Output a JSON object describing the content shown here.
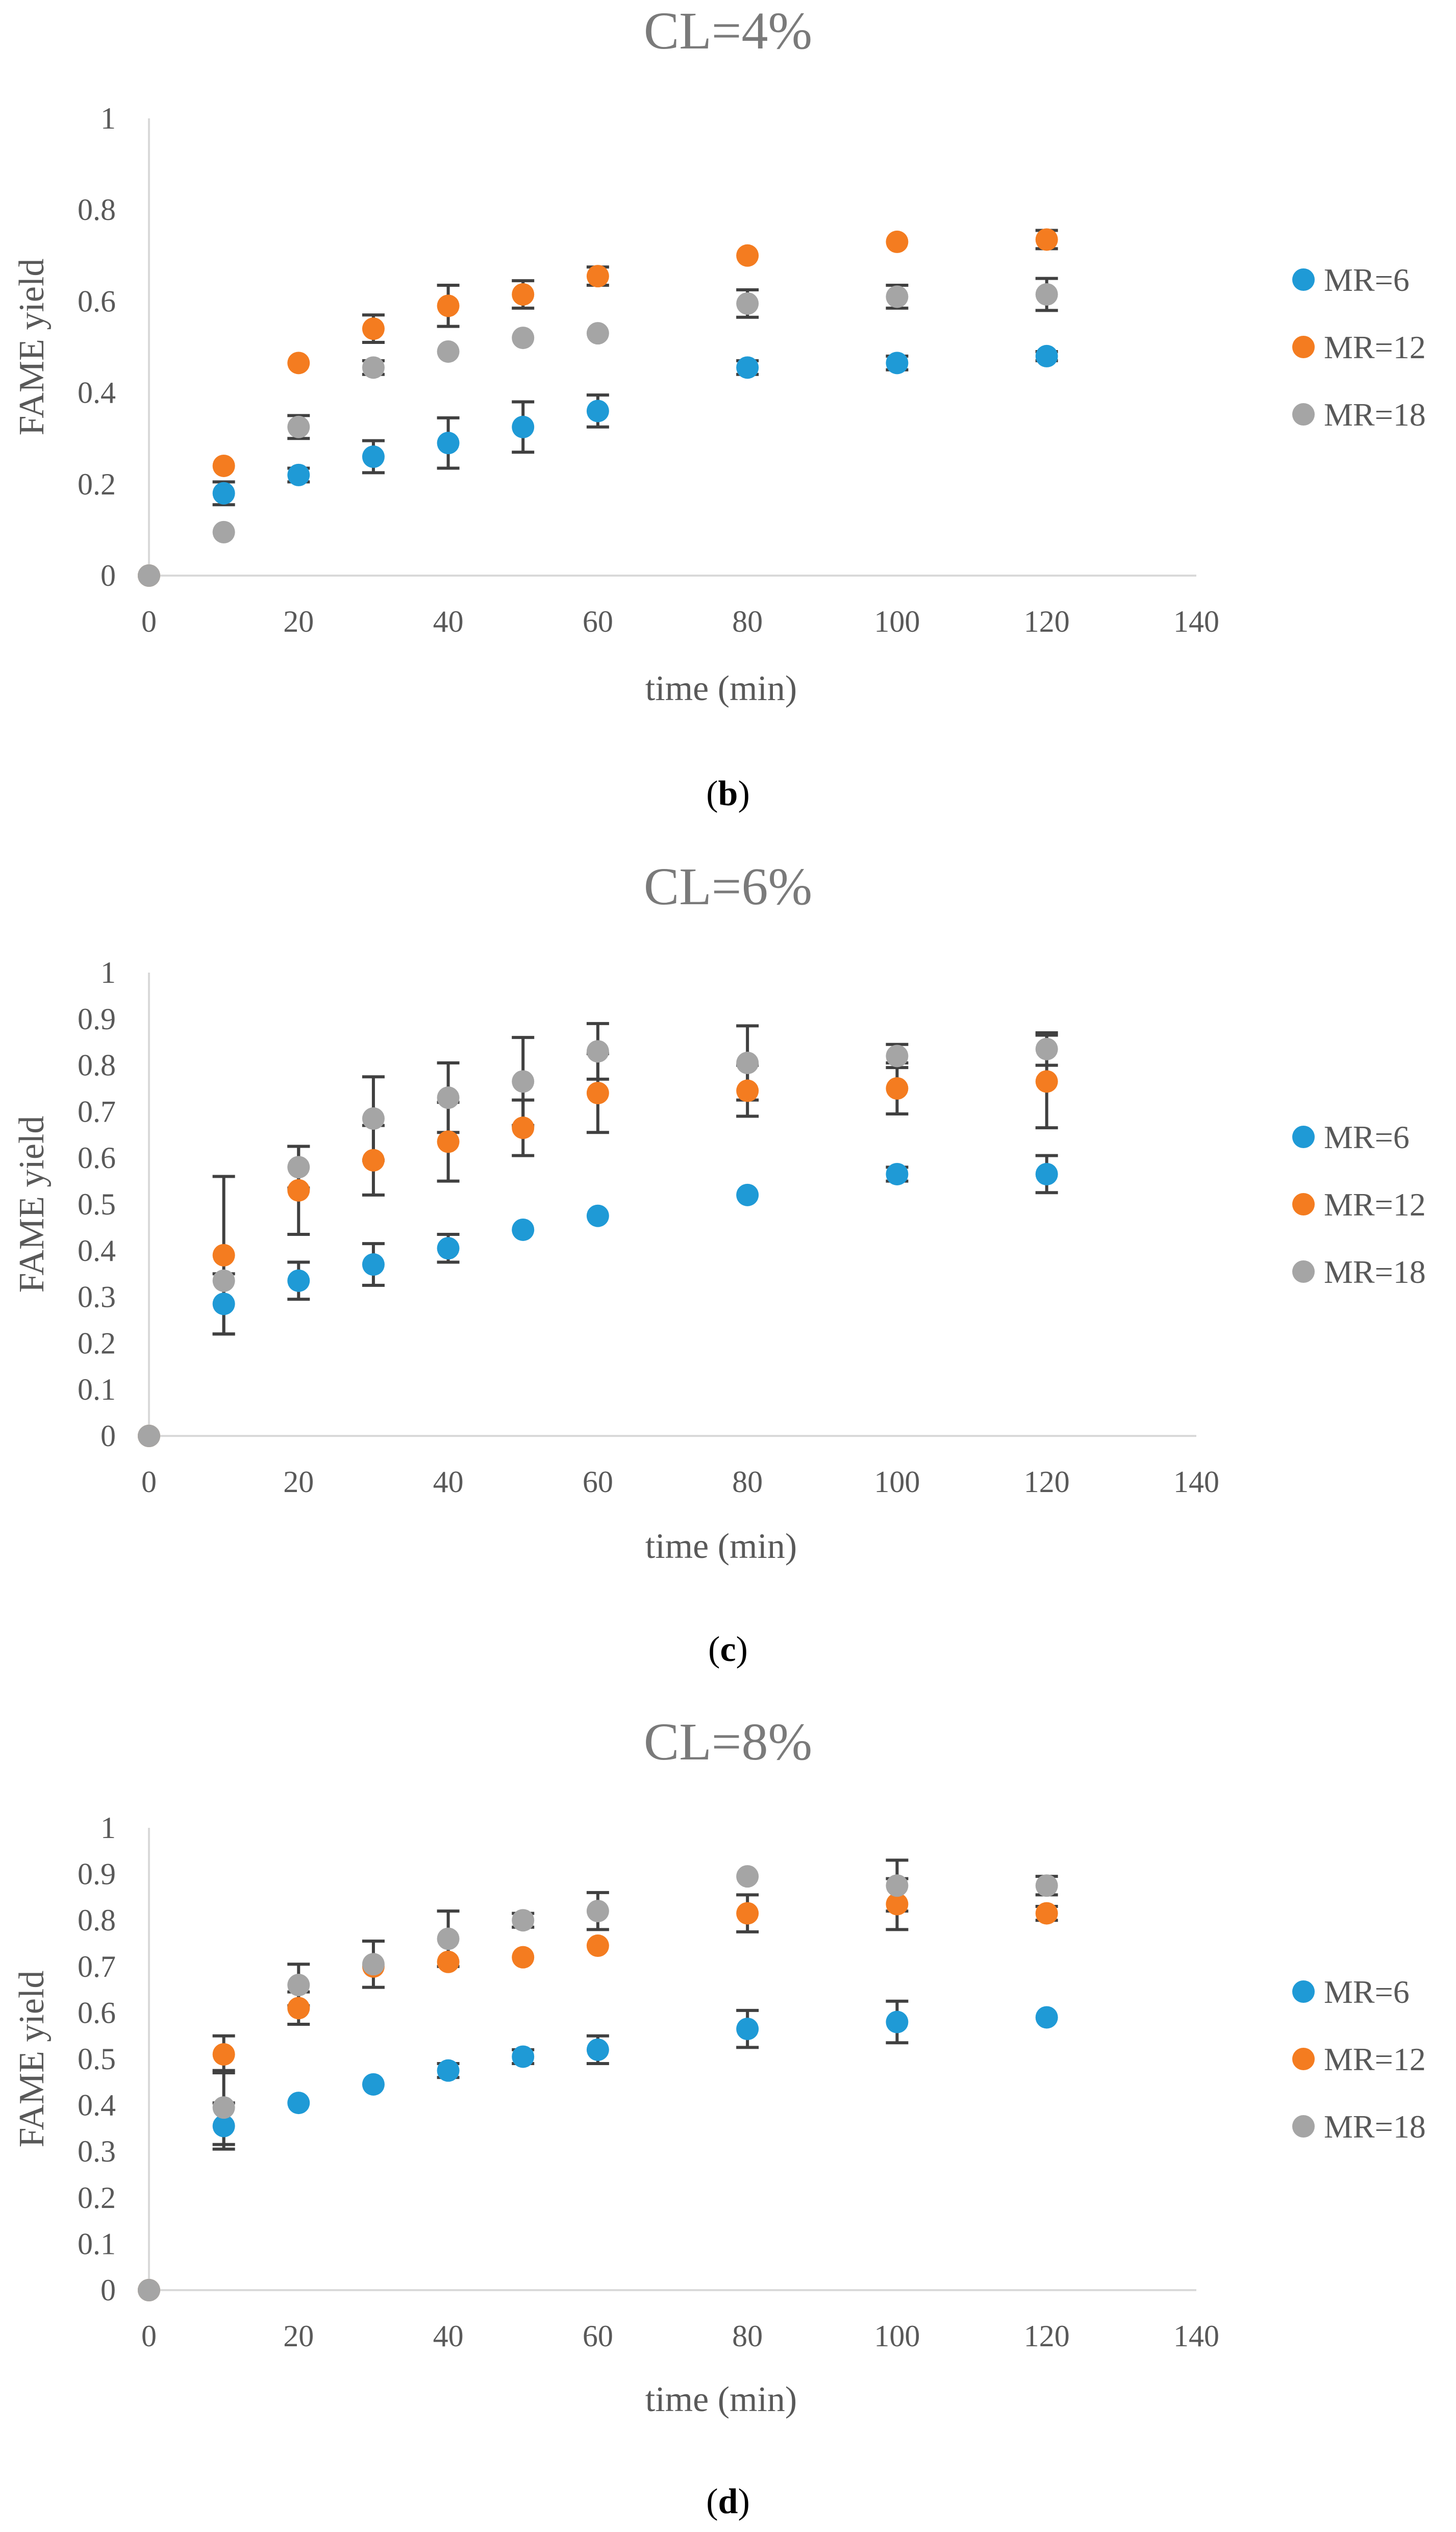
{
  "chart_data": [
    {
      "type": "scatter",
      "title": "CL=4%",
      "panel_label": "b",
      "xlabel": "time (min)",
      "ylabel": "FAME yield",
      "xlim": [
        0,
        140
      ],
      "ylim": [
        0,
        1
      ],
      "xticks": [
        0,
        20,
        40,
        60,
        80,
        100,
        120,
        140
      ],
      "yticks": [
        0,
        0.2,
        0.4,
        0.6,
        0.8,
        1
      ],
      "ytick_labels": [
        "0",
        "0.2",
        "0.4",
        "0.6",
        "0.8",
        "1"
      ],
      "legend_position": "right",
      "series": [
        {
          "name": "MR=6",
          "color": "#1f9ad6",
          "x": [
            0,
            10,
            20,
            30,
            40,
            50,
            60,
            80,
            100,
            120
          ],
          "y": [
            0,
            0.18,
            0.22,
            0.26,
            0.29,
            0.325,
            0.36,
            0.455,
            0.465,
            0.48
          ],
          "err": [
            0,
            0.025,
            0.015,
            0.035,
            0.055,
            0.055,
            0.035,
            0.015,
            0.015,
            0.01
          ]
        },
        {
          "name": "MR=12",
          "color": "#f47c20",
          "x": [
            0,
            10,
            20,
            30,
            40,
            50,
            60,
            80,
            100,
            120
          ],
          "y": [
            0,
            0.24,
            0.465,
            0.54,
            0.59,
            0.615,
            0.655,
            0.7,
            0.73,
            0.735
          ],
          "err": [
            0,
            0.0,
            0.0,
            0.03,
            0.045,
            0.03,
            0.02,
            0.0,
            0.0,
            0.02
          ]
        },
        {
          "name": "MR=18",
          "color": "#a5a5a5",
          "x": [
            0,
            10,
            20,
            30,
            40,
            50,
            60,
            80,
            100,
            120
          ],
          "y": [
            0,
            0.095,
            0.325,
            0.455,
            0.49,
            0.52,
            0.53,
            0.595,
            0.61,
            0.615
          ],
          "err": [
            0,
            0.0,
            0.025,
            0.015,
            0.0,
            0.0,
            0.0,
            0.03,
            0.025,
            0.035
          ]
        }
      ]
    },
    {
      "type": "scatter",
      "title": "CL=6%",
      "panel_label": "c",
      "xlabel": "time (min)",
      "ylabel": "FAME yield",
      "xlim": [
        0,
        140
      ],
      "ylim": [
        0,
        1
      ],
      "xticks": [
        0,
        20,
        40,
        60,
        80,
        100,
        120,
        140
      ],
      "yticks": [
        0,
        0.1,
        0.2,
        0.3,
        0.4,
        0.5,
        0.6,
        0.7,
        0.8,
        0.9,
        1
      ],
      "ytick_labels": [
        "0",
        "0.1",
        "0.2",
        "0.3",
        "0.4",
        "0.5",
        "0.6",
        "0.7",
        "0.8",
        "0.9",
        "1"
      ],
      "legend_position": "right",
      "series": [
        {
          "name": "MR=6",
          "color": "#1f9ad6",
          "x": [
            0,
            10,
            20,
            30,
            40,
            50,
            60,
            80,
            100,
            120
          ],
          "y": [
            0,
            0.285,
            0.335,
            0.37,
            0.405,
            0.445,
            0.475,
            0.52,
            0.565,
            0.565
          ],
          "err": [
            0,
            0.065,
            0.04,
            0.045,
            0.03,
            0.0,
            0.0,
            0.0,
            0.015,
            0.04
          ]
        },
        {
          "name": "MR=12",
          "color": "#f47c20",
          "x": [
            0,
            10,
            20,
            30,
            40,
            50,
            60,
            80,
            100,
            120
          ],
          "y": [
            0,
            0.39,
            0.53,
            0.595,
            0.635,
            0.665,
            0.74,
            0.745,
            0.75,
            0.765
          ],
          "err": [
            0,
            0.17,
            0.095,
            0.075,
            0.085,
            0.06,
            0.085,
            0.055,
            0.055,
            0.1
          ]
        },
        {
          "name": "MR=18",
          "color": "#a5a5a5",
          "x": [
            0,
            10,
            20,
            30,
            40,
            50,
            60,
            80,
            100,
            120
          ],
          "y": [
            0,
            0.335,
            0.58,
            0.685,
            0.73,
            0.765,
            0.83,
            0.805,
            0.82,
            0.835
          ],
          "err": [
            0,
            0.0,
            0.045,
            0.09,
            0.075,
            0.095,
            0.06,
            0.08,
            0.025,
            0.035
          ]
        }
      ]
    },
    {
      "type": "scatter",
      "title": "CL=8%",
      "panel_label": "d",
      "xlabel": "time (min)",
      "ylabel": "FAME yield",
      "xlim": [
        0,
        140
      ],
      "ylim": [
        0,
        1
      ],
      "xticks": [
        0,
        20,
        40,
        60,
        80,
        100,
        120,
        140
      ],
      "yticks": [
        0,
        0.1,
        0.2,
        0.3,
        0.4,
        0.5,
        0.6,
        0.7,
        0.8,
        0.9,
        1
      ],
      "ytick_labels": [
        "0",
        "0.1",
        "0.2",
        "0.3",
        "0.4",
        "0.5",
        "0.6",
        "0.7",
        "0.8",
        "0.9",
        "1"
      ],
      "legend_position": "right",
      "series": [
        {
          "name": "MR=6",
          "color": "#1f9ad6",
          "x": [
            0,
            10,
            20,
            30,
            40,
            50,
            60,
            80,
            100,
            120
          ],
          "y": [
            0,
            0.355,
            0.405,
            0.445,
            0.475,
            0.505,
            0.52,
            0.565,
            0.58,
            0.59
          ],
          "err": [
            0,
            0.05,
            0.0,
            0.0,
            0.015,
            0.015,
            0.03,
            0.04,
            0.045,
            0.0
          ]
        },
        {
          "name": "MR=12",
          "color": "#f47c20",
          "x": [
            0,
            10,
            20,
            30,
            40,
            50,
            60,
            80,
            100,
            120
          ],
          "y": [
            0,
            0.51,
            0.61,
            0.7,
            0.71,
            0.72,
            0.745,
            0.815,
            0.835,
            0.815
          ],
          "err": [
            0,
            0.04,
            0.035,
            0.0,
            0.0,
            0.0,
            0.0,
            0.04,
            0.055,
            0.015
          ]
        },
        {
          "name": "MR=18",
          "color": "#a5a5a5",
          "x": [
            0,
            10,
            20,
            30,
            40,
            50,
            60,
            80,
            100,
            120
          ],
          "y": [
            0,
            0.395,
            0.66,
            0.705,
            0.76,
            0.8,
            0.82,
            0.895,
            0.875,
            0.875
          ],
          "err": [
            0,
            0.08,
            0.045,
            0.05,
            0.06,
            0.015,
            0.04,
            0.0,
            0.055,
            0.02
          ]
        }
      ]
    }
  ]
}
